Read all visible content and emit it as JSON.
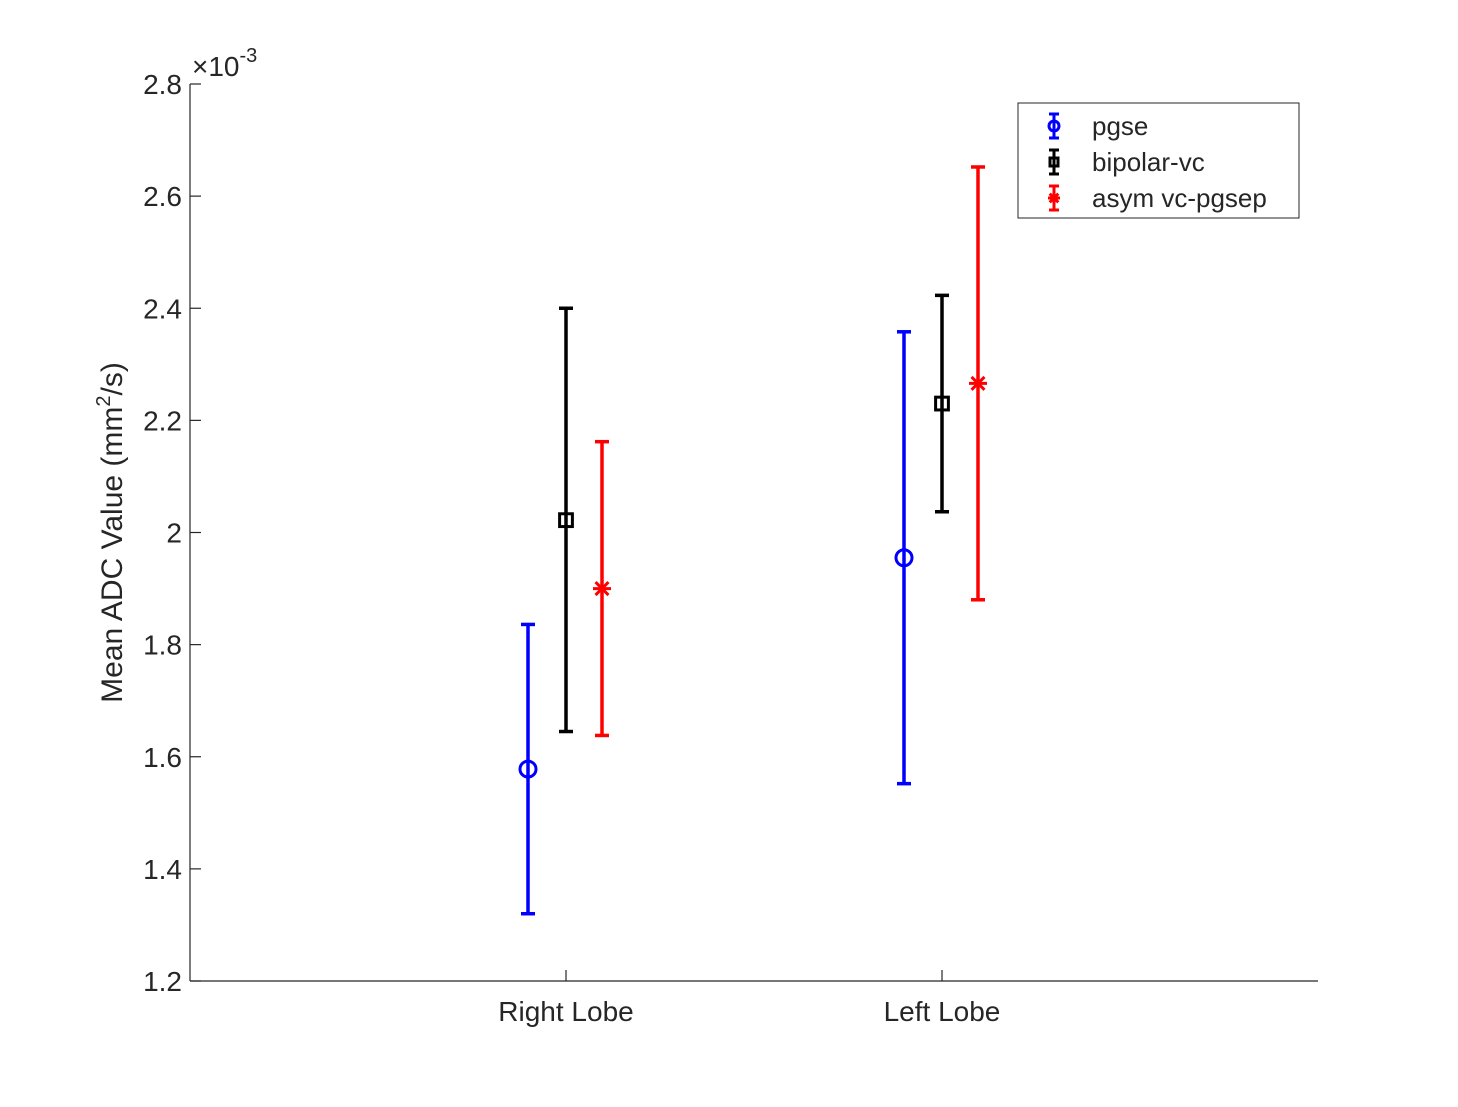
{
  "chart_data": {
    "type": "errorbar",
    "title": "",
    "xlabel": "",
    "ylabel": {
      "prefix": "Mean ADC Value (mm",
      "superscript": "2",
      "suffix": "/s)"
    },
    "categories": [
      "Right Lobe",
      "Left Lobe"
    ],
    "y_multiplier": {
      "base": "×10",
      "exponent": "-3"
    },
    "ylim": [
      1.2,
      2.8
    ],
    "yticks": [
      "1.2",
      "1.4",
      "1.6",
      "1.8",
      "2",
      "2.2",
      "2.4",
      "2.6",
      "2.8"
    ],
    "grid": false,
    "legend_position": "top-right",
    "series": [
      {
        "name": "pgse",
        "color": "#0000ff",
        "marker": "circle",
        "values": [
          1.578,
          1.955
        ],
        "lower": [
          1.32,
          1.552
        ],
        "upper": [
          1.836,
          2.358
        ]
      },
      {
        "name": "bipolar-vc",
        "color": "#000000",
        "marker": "square",
        "values": [
          2.022,
          2.23
        ],
        "lower": [
          1.645,
          2.037
        ],
        "upper": [
          2.4,
          2.423
        ]
      },
      {
        "name": "asym vc-pgsep",
        "color": "#ff0000",
        "marker": "asterisk",
        "values": [
          1.9,
          2.266
        ],
        "lower": [
          1.638,
          1.88
        ],
        "upper": [
          2.162,
          2.652
        ]
      }
    ]
  }
}
